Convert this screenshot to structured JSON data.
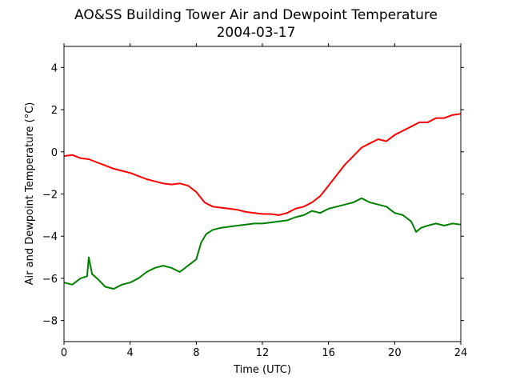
{
  "chart_data": {
    "type": "line",
    "title": "AO&SS Building Tower Air and Dewpoint Temperature",
    "subtitle": "2004-03-17",
    "xlabel": "Time (UTC)",
    "ylabel": "Air and Dewpoint Temperature (°C)",
    "xlim": [
      0,
      24
    ],
    "ylim": [
      -9,
      5
    ],
    "xticks": [
      0,
      4,
      8,
      12,
      16,
      20,
      24
    ],
    "yticks": [
      -8,
      -6,
      -4,
      -2,
      0,
      2,
      4
    ],
    "xtick_labels": [
      "0",
      "4",
      "8",
      "12",
      "16",
      "20",
      "24"
    ],
    "ytick_labels": [
      "−8",
      "−6",
      "−4",
      "−2",
      "0",
      "2",
      "4"
    ],
    "grid": false,
    "series": [
      {
        "color": "#ff0000",
        "x": [
          0,
          0.5,
          1,
          1.5,
          2,
          2.5,
          3,
          3.5,
          4,
          4.5,
          5,
          5.5,
          6,
          6.5,
          7,
          7.5,
          8,
          8.5,
          9,
          9.5,
          10,
          10.5,
          11,
          11.5,
          12,
          12.5,
          13,
          13.5,
          14,
          14.5,
          15,
          15.5,
          16,
          16.5,
          17,
          17.5,
          18,
          18.5,
          19,
          19.5,
          20,
          20.5,
          21,
          21.5,
          22,
          22.5,
          23,
          23.5,
          24
        ],
        "values": [
          -0.2,
          -0.15,
          -0.3,
          -0.35,
          -0.5,
          -0.65,
          -0.8,
          -0.9,
          -1.0,
          -1.15,
          -1.3,
          -1.4,
          -1.5,
          -1.55,
          -1.5,
          -1.6,
          -1.9,
          -2.4,
          -2.6,
          -2.65,
          -2.7,
          -2.75,
          -2.85,
          -2.9,
          -2.95,
          -2.95,
          -3.0,
          -2.9,
          -2.7,
          -2.6,
          -2.4,
          -2.1,
          -1.6,
          -1.1,
          -0.6,
          -0.2,
          0.2,
          0.4,
          0.6,
          0.5,
          0.8,
          1.0,
          1.2,
          1.4,
          1.4,
          1.6,
          1.6,
          1.75,
          1.8
        ]
      },
      {
        "color": "#008000",
        "x": [
          0,
          0.5,
          1,
          1.4,
          1.5,
          1.7,
          2,
          2.5,
          3,
          3.5,
          4,
          4.5,
          5,
          5.5,
          6,
          6.5,
          7,
          7.5,
          8,
          8.3,
          8.6,
          9,
          9.5,
          10,
          10.5,
          11,
          11.5,
          12,
          12.5,
          13,
          13.5,
          14,
          14.5,
          15,
          15.5,
          16,
          16.5,
          17,
          17.5,
          18,
          18.5,
          19,
          19.5,
          20,
          20.5,
          21,
          21.3,
          21.6,
          22,
          22.5,
          23,
          23.5,
          24
        ],
        "values": [
          -6.2,
          -6.3,
          -6.0,
          -5.9,
          -5.0,
          -5.8,
          -6.0,
          -6.4,
          -6.5,
          -6.3,
          -6.2,
          -6.0,
          -5.7,
          -5.5,
          -5.4,
          -5.5,
          -5.7,
          -5.4,
          -5.1,
          -4.3,
          -3.9,
          -3.7,
          -3.6,
          -3.55,
          -3.5,
          -3.45,
          -3.4,
          -3.4,
          -3.35,
          -3.3,
          -3.25,
          -3.1,
          -3.0,
          -2.8,
          -2.9,
          -2.7,
          -2.6,
          -2.5,
          -2.4,
          -2.2,
          -2.4,
          -2.5,
          -2.6,
          -2.9,
          -3.0,
          -3.3,
          -3.8,
          -3.6,
          -3.5,
          -3.4,
          -3.5,
          -3.4,
          -3.45
        ]
      }
    ]
  }
}
